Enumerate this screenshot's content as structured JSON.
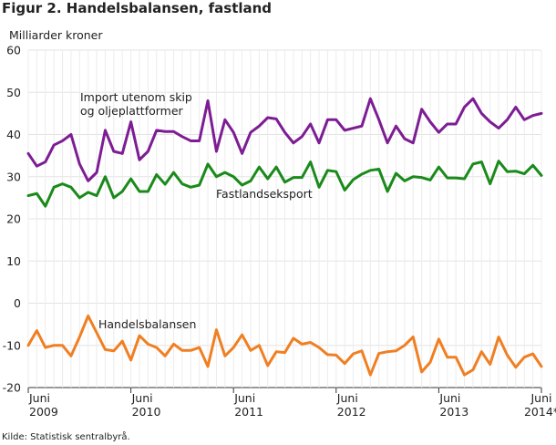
{
  "figure_title": "Figur 2. Handelsbalansen, fastland",
  "source_note": "Kilde: Statistisk sentralbyrå.",
  "chart_data": {
    "type": "line",
    "title": "Figur 2. Handelsbalansen, fastland",
    "ylabel": "Milliarder kroner",
    "xlabel": "",
    "ylim": [
      -20,
      60
    ],
    "yticks": [
      -20,
      -10,
      0,
      10,
      20,
      30,
      40,
      50,
      60
    ],
    "grid": true,
    "legend": "none (inline annotations)",
    "x_start": "2009-06",
    "x_end": "2014-06",
    "x_tick_labels": [
      {
        "month": "2009-06",
        "line1": "Juni",
        "line2": "2009"
      },
      {
        "month": "2010-06",
        "line1": "Juni",
        "line2": "2010"
      },
      {
        "month": "2011-06",
        "line1": "Juni",
        "line2": "2011"
      },
      {
        "month": "2012-06",
        "line1": "Juni",
        "line2": "2012"
      },
      {
        "month": "2013-06",
        "line1": "Juni",
        "line2": "2013"
      },
      {
        "month": "2014-06",
        "line1": "Juni",
        "line2": "2014*"
      }
    ],
    "series": [
      {
        "name": "Import utenom skip og oljeplattformer",
        "label_lines": [
          "Import utenom skip",
          "og oljeplattformer"
        ],
        "color": "#7d1d94",
        "values": [
          35.5,
          32.5,
          33.5,
          37.5,
          38.5,
          40,
          33,
          29,
          31,
          41,
          36,
          35.5,
          43,
          34,
          36,
          41,
          40.7,
          40.7,
          39.5,
          38.5,
          38.5,
          48,
          36,
          43.5,
          40.5,
          35.5,
          40.5,
          42,
          44,
          43.7,
          40.5,
          38,
          39.5,
          42.5,
          38,
          43.5,
          43.5,
          41,
          41.5,
          42,
          48.5,
          43.5,
          38,
          42,
          39,
          38,
          46,
          43,
          40.5,
          42.5,
          42.5,
          46.5,
          48.5,
          45,
          43,
          41.5,
          43.5,
          46.5,
          43.5,
          44.5,
          45
        ]
      },
      {
        "name": "Fastlandseksport",
        "label_lines": [
          "Fastlandseksport"
        ],
        "color": "#1a8a1a",
        "values": [
          25.5,
          26,
          23,
          27.5,
          28.3,
          27.5,
          25,
          26.3,
          25.5,
          30,
          25,
          26.5,
          29.5,
          26.5,
          26.5,
          30.5,
          28.2,
          31,
          28.3,
          27.5,
          28,
          33,
          30,
          31,
          30,
          28,
          29,
          32.3,
          29.5,
          32.3,
          28.7,
          29.8,
          29.8,
          33.5,
          27.5,
          31.5,
          31.2,
          26.8,
          29.3,
          30.6,
          31.5,
          31.8,
          26.5,
          30.8,
          29,
          30,
          29.8,
          29.2,
          32.3,
          29.7,
          29.7,
          29.5,
          33,
          33.5,
          28.3,
          33.7,
          31.2,
          31.3,
          30.7,
          32.7,
          30.3
        ]
      },
      {
        "name": "Handelsbalansen",
        "label_lines": [
          "Handelsbalansen"
        ],
        "color": "#f07f22",
        "values": [
          -10,
          -6.5,
          -10.5,
          -10,
          -10,
          -12.5,
          -8,
          -3,
          -7,
          -11,
          -11.3,
          -9,
          -13.5,
          -7.7,
          -9.7,
          -10.5,
          -12.5,
          -9.7,
          -11.2,
          -11.2,
          -10.5,
          -15,
          -6.3,
          -12.5,
          -10.5,
          -7.5,
          -11.2,
          -10,
          -14.8,
          -11.5,
          -11.7,
          -8.3,
          -9.7,
          -9.3,
          -10.5,
          -12.2,
          -12.3,
          -14.3,
          -12,
          -11.3,
          -17,
          -11.9,
          -11.5,
          -11.3,
          -10,
          -8,
          -16.3,
          -14,
          -8.5,
          -12.8,
          -12.8,
          -17,
          -15.8,
          -11.5,
          -14.5,
          -8,
          -12.3,
          -15.2,
          -12.8,
          -12,
          -15
        ]
      }
    ]
  }
}
